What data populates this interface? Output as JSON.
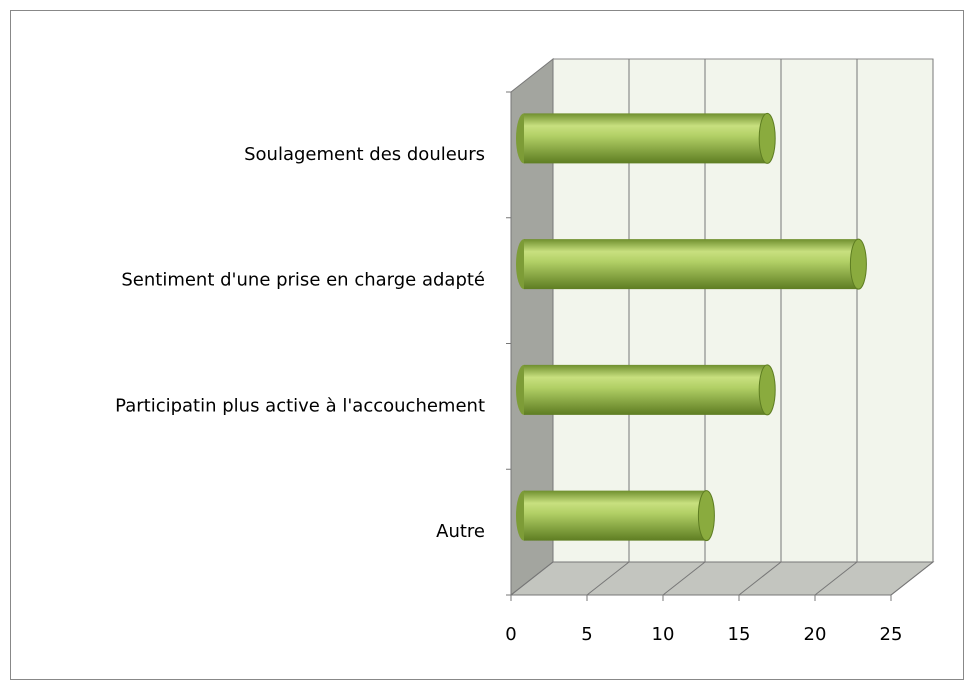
{
  "chart_data": {
    "type": "bar",
    "orientation": "horizontal",
    "categories": [
      "Soulagement des douleurs",
      "Sentiment d'une prise en charge adapté",
      "Participatin plus active à l'accouchement",
      "Autre"
    ],
    "values": [
      16,
      22,
      16,
      12
    ],
    "color": "#9bbb59",
    "xlim": [
      0,
      25
    ],
    "xticks": [
      0,
      5,
      10,
      15,
      20,
      25
    ],
    "grid": true
  }
}
